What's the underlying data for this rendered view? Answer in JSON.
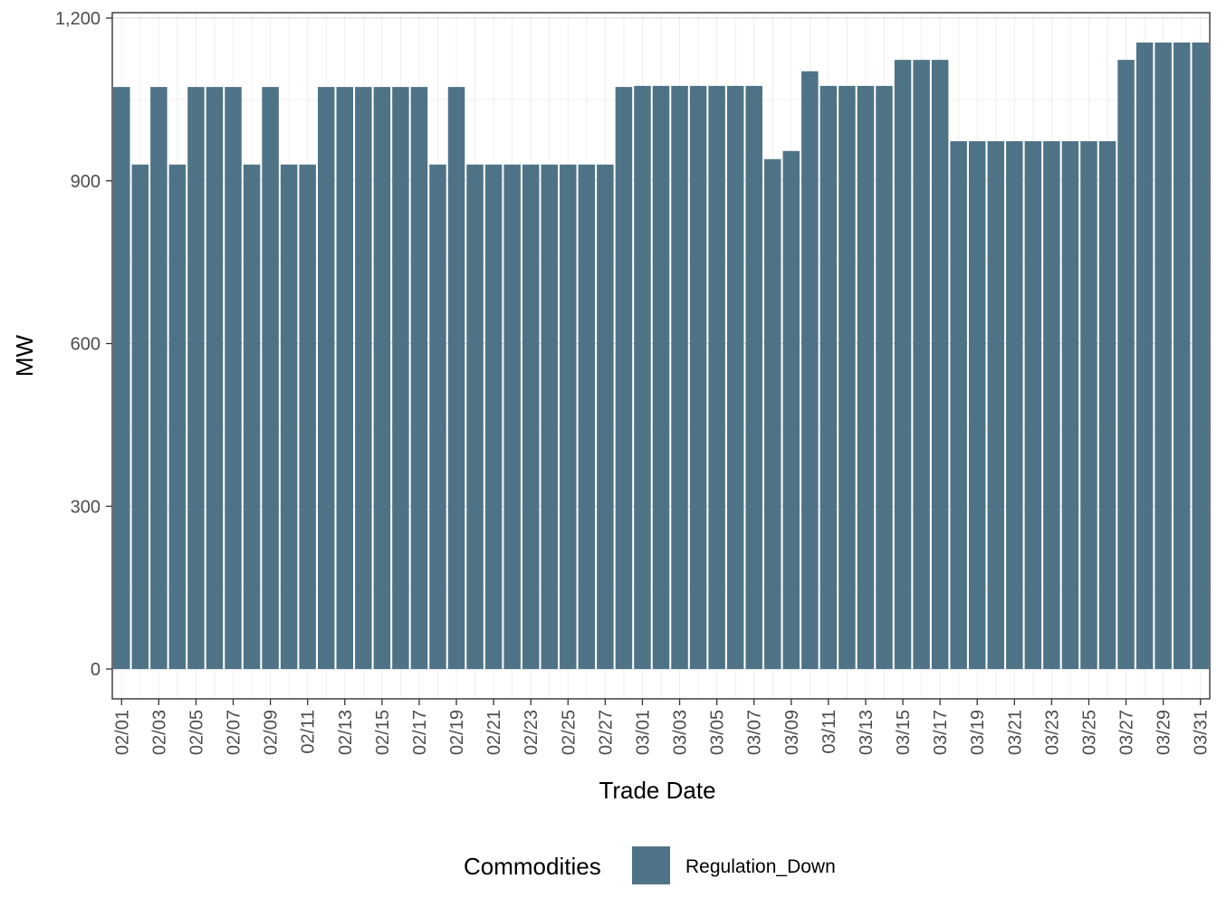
{
  "chart_data": {
    "type": "bar",
    "title": "",
    "xlabel": "Trade Date",
    "ylabel": "MW",
    "ylim": [
      -55,
      1210
    ],
    "yticks": [
      0,
      300,
      600,
      900,
      1200
    ],
    "ytick_labels": [
      "0",
      "300",
      "600",
      "900",
      "1,200"
    ],
    "grid": true,
    "legend_position": "bottom",
    "legend_title": "Commodities",
    "categories": [
      "02/01",
      "02/02",
      "02/03",
      "02/04",
      "02/05",
      "02/06",
      "02/07",
      "02/08",
      "02/09",
      "02/10",
      "02/11",
      "02/12",
      "02/13",
      "02/14",
      "02/15",
      "02/16",
      "02/17",
      "02/18",
      "02/19",
      "02/20",
      "02/21",
      "02/22",
      "02/23",
      "02/24",
      "02/25",
      "02/26",
      "02/27",
      "02/28",
      "03/01",
      "03/02",
      "03/03",
      "03/04",
      "03/05",
      "03/06",
      "03/07",
      "03/08",
      "03/09",
      "03/10",
      "03/11",
      "03/12",
      "03/13",
      "03/14",
      "03/15",
      "03/16",
      "03/17",
      "03/18",
      "03/19",
      "03/20",
      "03/21",
      "03/22",
      "03/23",
      "03/24",
      "03/25",
      "03/26",
      "03/27",
      "03/28",
      "03/29",
      "03/30",
      "03/31"
    ],
    "tick_labels_shown": [
      "02/01",
      "02/03",
      "02/05",
      "02/07",
      "02/09",
      "02/11",
      "02/13",
      "02/15",
      "02/17",
      "02/19",
      "02/21",
      "02/23",
      "02/25",
      "02/27",
      "03/01",
      "03/03",
      "03/05",
      "03/07",
      "03/09",
      "03/11",
      "03/13",
      "03/15",
      "03/17",
      "03/19",
      "03/21",
      "03/23",
      "03/25",
      "03/27",
      "03/29",
      "03/31"
    ],
    "series": [
      {
        "name": "Regulation_Down",
        "color": "#4f7386",
        "values": [
          1073,
          930,
          1073,
          930,
          1073,
          1073,
          1073,
          930,
          1073,
          930,
          930,
          1073,
          1073,
          1073,
          1073,
          1073,
          1073,
          930,
          1073,
          930,
          930,
          930,
          930,
          930,
          930,
          930,
          930,
          1073,
          1075,
          1075,
          1075,
          1075,
          1075,
          1075,
          1075,
          940,
          955,
          1102,
          1075,
          1075,
          1075,
          1075,
          1123,
          1123,
          1123,
          973,
          973,
          973,
          973,
          973,
          973,
          973,
          973,
          973,
          1123,
          1155,
          1155,
          1155,
          1155
        ]
      }
    ]
  }
}
